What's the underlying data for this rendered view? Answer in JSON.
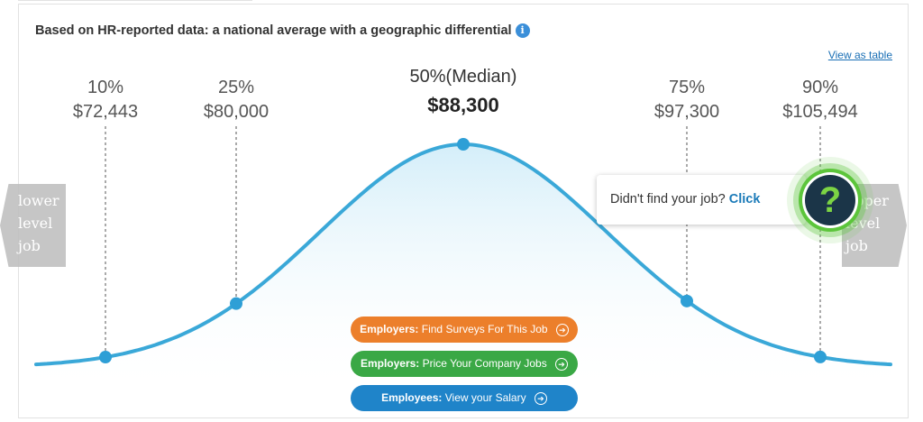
{
  "header": {
    "title": "Based on HR-reported data: a national average with a geographic differential",
    "info_icon": "i"
  },
  "view_table_label": "View as table",
  "chart_data": {
    "type": "line",
    "percentiles": [
      {
        "label": "10%",
        "value": 72443,
        "display": "$72,443"
      },
      {
        "label": "25%",
        "value": 80000,
        "display": "$80,000"
      },
      {
        "label": "50%(Median)",
        "value": 88300,
        "display": "$88,300"
      },
      {
        "label": "75%",
        "value": 97300,
        "display": "$97,300"
      },
      {
        "label": "90%",
        "value": 105494,
        "display": "$105,494"
      }
    ],
    "colors": {
      "curve": "#3aa8d8",
      "fill": "#e6f4fb",
      "dots": "#2e9fd6",
      "guides": "#555555"
    }
  },
  "nav": {
    "lower": [
      "lower",
      "level",
      "job"
    ],
    "upper": [
      "upper",
      "level",
      "job"
    ]
  },
  "prompt": {
    "text": "Didn't find your job?",
    "link": "Click",
    "icon_text": "?"
  },
  "buttons": {
    "employers_surveys": {
      "lead": "Employers:",
      "text": "Find Surveys For This Job"
    },
    "employers_price": {
      "lead": "Employers:",
      "text": "Price Your Company Jobs"
    },
    "employees_salary": {
      "lead": "Employees:",
      "text": "View your Salary"
    }
  }
}
